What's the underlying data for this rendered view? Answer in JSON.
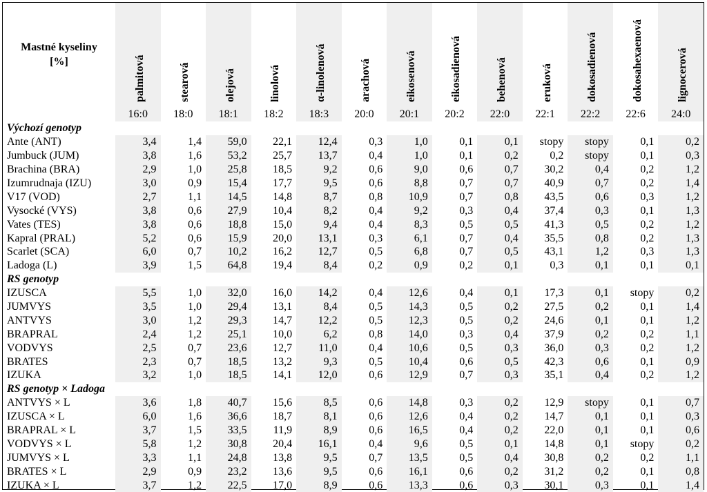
{
  "header": {
    "row_label": [
      "Mastné kyseliny",
      "[%]"
    ],
    "columns": [
      {
        "name": "palmitová",
        "code": "16:0"
      },
      {
        "name": "stearová",
        "code": "18:0"
      },
      {
        "name": "olejová",
        "code": "18:1"
      },
      {
        "name": "linolová",
        "code": "18:2"
      },
      {
        "name": "α-linolenová",
        "code": "18:3"
      },
      {
        "name": "arachová",
        "code": "20:0"
      },
      {
        "name": "eikosenová",
        "code": "20:1"
      },
      {
        "name": "eikosadienová",
        "code": "20:2"
      },
      {
        "name": "behenová",
        "code": "22:0"
      },
      {
        "name": "eruková",
        "code": "22:1"
      },
      {
        "name": "dokosadienová",
        "code": "22:2"
      },
      {
        "name": "dokosahexaenová",
        "code": "22:6"
      },
      {
        "name": "lignocerová",
        "code": "24:0"
      }
    ]
  },
  "groups": [
    {
      "title": "Výchozí genotyp",
      "rows": [
        {
          "name": "Ante (ANT)",
          "values": [
            "3,4",
            "1,4",
            "59,0",
            "22,1",
            "12,4",
            "0,3",
            "1,0",
            "0,1",
            "0,1",
            "stopy",
            "stopy",
            "0,1",
            "0,2"
          ]
        },
        {
          "name": "Jumbuck (JUM)",
          "values": [
            "3,8",
            "1,6",
            "53,2",
            "25,7",
            "13,7",
            "0,4",
            "1,0",
            "0,1",
            "0,2",
            "0,2",
            "stopy",
            "0,1",
            "0,3"
          ]
        },
        {
          "name": "Brachina (BRA)",
          "values": [
            "2,9",
            "1,0",
            "25,8",
            "18,5",
            "9,2",
            "0,6",
            "9,0",
            "0,6",
            "0,7",
            "30,2",
            "0,4",
            "0,2",
            "1,2"
          ]
        },
        {
          "name": "Izumrudnaja (IZU)",
          "values": [
            "3,0",
            "0,9",
            "15,4",
            "17,7",
            "9,5",
            "0,6",
            "8,8",
            "0,7",
            "0,7",
            "40,9",
            "0,7",
            "0,2",
            "1,4"
          ]
        },
        {
          "name": "V17 (VOD)",
          "values": [
            "2,7",
            "1,1",
            "14,5",
            "14,8",
            "8,7",
            "0,8",
            "10,9",
            "0,7",
            "0,8",
            "43,5",
            "0,6",
            "0,3",
            "1,2"
          ]
        },
        {
          "name": "Vysocké (VYS)",
          "values": [
            "3,8",
            "0,6",
            "27,9",
            "10,4",
            "8,2",
            "0,4",
            "9,2",
            "0,3",
            "0,4",
            "37,4",
            "0,3",
            "0,1",
            "1,3"
          ]
        },
        {
          "name": "Vates (TES)",
          "values": [
            "3,8",
            "0,6",
            "18,8",
            "15,0",
            "9,4",
            "0,4",
            "8,3",
            "0,5",
            "0,5",
            "41,3",
            "0,5",
            "0,2",
            "1,2"
          ]
        },
        {
          "name": "Kapral (PRAL)",
          "values": [
            "5,2",
            "0,6",
            "15,9",
            "20,0",
            "13,1",
            "0,3",
            "6,1",
            "0,7",
            "0,4",
            "35,5",
            "0,8",
            "0,2",
            "1,3"
          ]
        },
        {
          "name": "Scarlet (SCA)",
          "values": [
            "6,0",
            "0,7",
            "10,2",
            "16,2",
            "12,7",
            "0,5",
            "6,8",
            "0,7",
            "0,5",
            "43,1",
            "1,2",
            "0,3",
            "1,3"
          ]
        },
        {
          "name": "Ladoga (L)",
          "values": [
            "3,9",
            "1,5",
            "64,8",
            "19,4",
            "8,4",
            "0,2",
            "0,9",
            "0,2",
            "0,1",
            "0,3",
            "0,1",
            "0,1",
            "0,1"
          ]
        }
      ]
    },
    {
      "title": "RS genotyp",
      "rows": [
        {
          "name": "IZUSCA",
          "values": [
            "5,5",
            "1,0",
            "32,0",
            "16,0",
            "14,2",
            "0,4",
            "12,6",
            "0,4",
            "0,1",
            "17,3",
            "0,1",
            "stopy",
            "0,2"
          ]
        },
        {
          "name": "JUMVYS",
          "values": [
            "3,5",
            "1,0",
            "29,4",
            "13,1",
            "8,4",
            "0,5",
            "14,3",
            "0,5",
            "0,2",
            "27,5",
            "0,2",
            "0,1",
            "1,4"
          ]
        },
        {
          "name": "ANTVYS",
          "values": [
            "3,0",
            "1,2",
            "29,3",
            "14,7",
            "12,2",
            "0,5",
            "12,3",
            "0,5",
            "0,2",
            "24,6",
            "0,1",
            "0,1",
            "1,2"
          ]
        },
        {
          "name": "BRAPRAL",
          "values": [
            "2,4",
            "1,2",
            "25,1",
            "10,0",
            "6,2",
            "0,8",
            "14,0",
            "0,3",
            "0,4",
            "37,9",
            "0,2",
            "0,2",
            "1,1"
          ]
        },
        {
          "name": "VODVYS",
          "values": [
            "2,5",
            "0,7",
            "23,6",
            "12,7",
            "11,0",
            "0,4",
            "10,6",
            "0,5",
            "0,3",
            "36,0",
            "0,3",
            "0,2",
            "1,2"
          ]
        },
        {
          "name": "BRATES",
          "values": [
            "2,3",
            "0,7",
            "18,5",
            "13,2",
            "9,3",
            "0,5",
            "10,4",
            "0,6",
            "0,5",
            "42,3",
            "0,6",
            "0,1",
            "0,9"
          ]
        },
        {
          "name": "IZUKA",
          "values": [
            "3,2",
            "1,0",
            "18,5",
            "14,1",
            "12,0",
            "0,6",
            "12,9",
            "0,7",
            "0,3",
            "35,1",
            "0,4",
            "0,2",
            "1,2"
          ]
        }
      ]
    },
    {
      "title": "RS genotyp × Ladoga",
      "rows": [
        {
          "name": "ANTVYS  ×  L",
          "values": [
            "3,6",
            "1,8",
            "40,7",
            "15,6",
            "8,5",
            "0,6",
            "14,8",
            "0,3",
            "0,2",
            "12,9",
            "stopy",
            "0,1",
            "0,7"
          ]
        },
        {
          "name": "IZUSCA  ×  L",
          "values": [
            "6,0",
            "1,6",
            "36,6",
            "18,7",
            "8,1",
            "0,6",
            "12,6",
            "0,4",
            "0,2",
            "14,7",
            "0,1",
            "0,1",
            "0,3"
          ]
        },
        {
          "name": "BRAPRAL  ×  L",
          "values": [
            "3,7",
            "1,5",
            "33,5",
            "11,9",
            "8,9",
            "0,6",
            "16,5",
            "0,4",
            "0,2",
            "22,0",
            "0,1",
            "0,1",
            "0,6"
          ]
        },
        {
          "name": "VODVYS  ×  L",
          "values": [
            "5,8",
            "1,2",
            "30,8",
            "20,4",
            "16,1",
            "0,4",
            "9,6",
            "0,5",
            "0,1",
            "14,8",
            "0,1",
            "stopy",
            "0,2"
          ]
        },
        {
          "name": "JUMVYS  ×  L",
          "values": [
            "3,3",
            "1,1",
            "24,8",
            "13,8",
            "9,5",
            "0,7",
            "13,5",
            "0,5",
            "0,4",
            "30,8",
            "0,2",
            "0,2",
            "1,1"
          ]
        },
        {
          "name": "BRATES  ×  L",
          "values": [
            "2,9",
            "0,9",
            "23,2",
            "13,6",
            "9,5",
            "0,6",
            "16,1",
            "0,6",
            "0,2",
            "31,2",
            "0,2",
            "0,1",
            "0,8"
          ]
        },
        {
          "name": "IZUKA  ×  L",
          "values": [
            "3,7",
            "1,2",
            "22,5",
            "17,0",
            "8,9",
            "0,6",
            "13,3",
            "0,6",
            "0,3",
            "30,1",
            "0,3",
            "0,1",
            "1,4"
          ]
        }
      ]
    }
  ]
}
